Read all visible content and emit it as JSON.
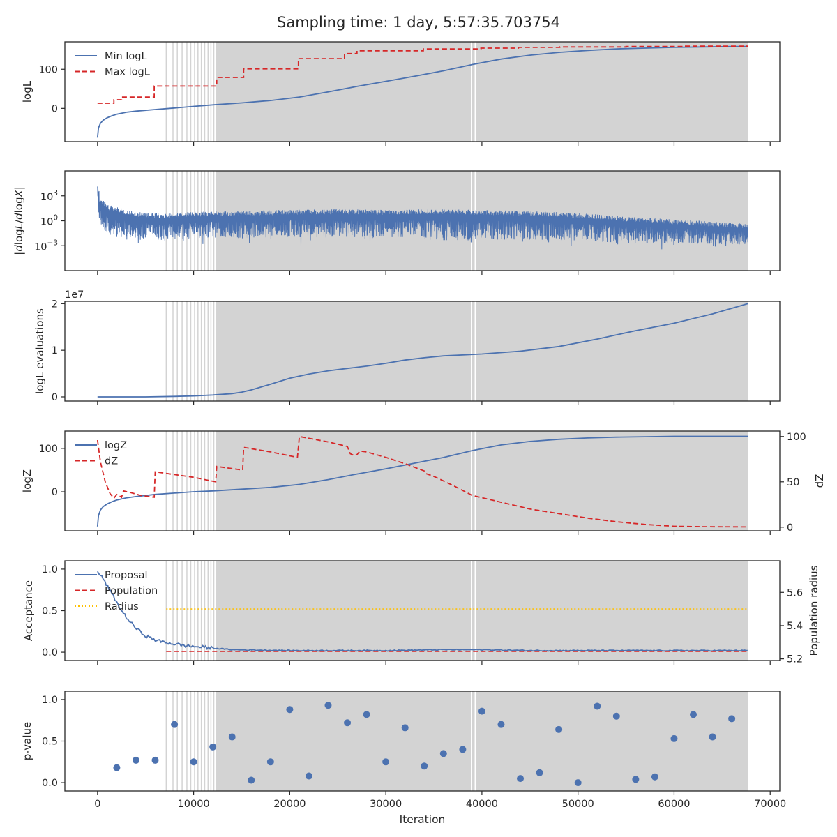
{
  "figure": {
    "title": "Sampling time: 1 day, 5:57:35.703754",
    "xlabel": "Iteration",
    "xlim": [
      -3400,
      71000
    ],
    "xticks": [
      0,
      10000,
      20000,
      30000,
      40000,
      50000,
      60000,
      70000
    ],
    "shading_color": "#d3d3d3",
    "shaded_start": 12350,
    "shaded_end": 67700,
    "gap_lines": [
      7150,
      7850,
      8300,
      8800,
      9300,
      9700,
      10100,
      10450,
      10800,
      11150,
      11500,
      11800,
      12100
    ],
    "white_lines": [
      38900,
      39300
    ]
  },
  "chart_data": [
    {
      "type": "line",
      "name": "logL panel",
      "ylabel": "logL",
      "ylim": [
        -85,
        170
      ],
      "yticks": [
        0,
        100
      ],
      "legend": "top-left",
      "series": [
        {
          "name": "Min logL",
          "color": "#4c72b0",
          "style": "solid",
          "x": [
            0,
            100,
            300,
            600,
            1000,
            1500,
            2000,
            3000,
            4000,
            6000,
            8000,
            10000,
            12000,
            15000,
            18000,
            21000,
            24000,
            27000,
            30000,
            33000,
            36000,
            39000,
            42000,
            45000,
            48000,
            51000,
            54000,
            57000,
            60000,
            63000,
            66000,
            67700
          ],
          "y": [
            -75,
            -50,
            -38,
            -30,
            -24,
            -19,
            -15,
            -10,
            -7,
            -3,
            1,
            5,
            9,
            14,
            20,
            29,
            42,
            56,
            69,
            82,
            96,
            112,
            126,
            136,
            143,
            148,
            152,
            154,
            156,
            157,
            158,
            158
          ]
        },
        {
          "name": "Max logL",
          "color": "#d62728",
          "style": "dashed",
          "x": [
            0,
            1700,
            1700,
            2500,
            2500,
            5900,
            5900,
            12400,
            12400,
            15200,
            15200,
            20900,
            20900,
            25700,
            25700,
            27000,
            27000,
            33900,
            33900,
            39900,
            39900,
            43800,
            43800,
            48100,
            48100,
            55000,
            55000,
            60900,
            60900,
            67700
          ],
          "y": [
            13,
            13,
            22,
            22,
            29,
            29,
            57,
            57,
            79,
            79,
            101,
            101,
            127,
            127,
            140,
            140,
            147,
            147,
            152,
            152,
            154,
            154,
            156,
            156,
            157,
            157,
            158,
            158,
            159,
            159
          ]
        }
      ]
    },
    {
      "type": "line",
      "name": "gradient panel",
      "ylabel": "|dlogL/dlogX|",
      "yscale": "log",
      "ylim": [
        1e-06,
        1000000.0
      ],
      "yticks": [
        "10^3",
        "10^0",
        "10^-3"
      ],
      "series": [
        {
          "name": "|dlogL/dlogX|",
          "color": "#4c72b0",
          "envelope_x": [
            0,
            200,
            1000,
            3000,
            5000,
            7000,
            10000,
            15000,
            20000,
            25000,
            30000,
            35000,
            40000,
            45000,
            50000,
            55000,
            60000,
            65000,
            67700
          ],
          "envelope_upper": [
            20000,
            500,
            80,
            20,
            8,
            8,
            12,
            15,
            20,
            25,
            20,
            25,
            20,
            15,
            8,
            3,
            1.5,
            0.6,
            0.5
          ],
          "envelope_lower": [
            1,
            0.05,
            0.003,
            0.002,
            0.002,
            0.001,
            0.002,
            0.002,
            0.003,
            0.002,
            0.002,
            0.001,
            0.001,
            0.001,
            0.001,
            0.0005,
            0.0005,
            0.0005,
            0.0005
          ]
        }
      ]
    },
    {
      "type": "line",
      "name": "evaluations panel",
      "ylabel": "logL evaluations",
      "scale_label": "1e7",
      "ylim": [
        -0.09,
        2.05
      ],
      "yticks": [
        0,
        1,
        2
      ],
      "series": [
        {
          "name": "logL evaluations",
          "color": "#4c72b0",
          "x": [
            0,
            5000,
            8000,
            10000,
            12000,
            14000,
            15000,
            16000,
            18000,
            20000,
            22000,
            24000,
            26000,
            28000,
            30000,
            32000,
            34000,
            36000,
            40000,
            44000,
            48000,
            52000,
            56000,
            60000,
            64000,
            67700
          ],
          "y": [
            0.0,
            0.0,
            0.01,
            0.02,
            0.04,
            0.07,
            0.1,
            0.15,
            0.27,
            0.4,
            0.49,
            0.56,
            0.61,
            0.66,
            0.72,
            0.79,
            0.84,
            0.88,
            0.92,
            0.98,
            1.08,
            1.24,
            1.42,
            1.58,
            1.78,
            2.0
          ]
        }
      ]
    },
    {
      "type": "line",
      "name": "evidence panel",
      "ylabel": "logZ",
      "ylabel_right": "dZ",
      "ylim": [
        -90,
        140
      ],
      "yticks": [
        0,
        100
      ],
      "ylim_right": [
        -4,
        106
      ],
      "yticks_right": [
        0,
        50,
        100
      ],
      "legend": "top-left",
      "series": [
        {
          "name": "logZ",
          "color": "#4c72b0",
          "style": "solid",
          "axis": "left",
          "x": [
            0,
            100,
            300,
            600,
            1000,
            1500,
            2000,
            3000,
            4000,
            6000,
            8000,
            10000,
            12000,
            15000,
            18000,
            21000,
            24000,
            27000,
            30000,
            33000,
            36000,
            39000,
            42000,
            45000,
            48000,
            51000,
            54000,
            57000,
            60000,
            63000,
            66000,
            67700
          ],
          "y": [
            -80,
            -55,
            -42,
            -34,
            -28,
            -23,
            -19,
            -14,
            -11,
            -6,
            -3,
            0,
            2,
            6,
            10,
            17,
            28,
            41,
            53,
            66,
            79,
            95,
            108,
            116,
            121,
            124,
            126,
            127,
            128,
            128,
            128,
            128
          ]
        },
        {
          "name": "dZ",
          "color": "#d62728",
          "style": "dashed",
          "axis": "right",
          "x": [
            0,
            300,
            800,
            1300,
            1700,
            2000,
            2500,
            2700,
            3500,
            4500,
            5900,
            6000,
            8000,
            10000,
            12300,
            12400,
            15100,
            15200,
            18000,
            20800,
            21000,
            22000,
            24000,
            26000,
            26300,
            26700,
            27000,
            27300,
            28000,
            30000,
            32000,
            34000,
            34200,
            35000,
            37000,
            39000,
            41000,
            43000,
            45000,
            48000,
            51000,
            54000,
            57000,
            60000,
            63000,
            67700
          ],
          "y": [
            96,
            72,
            50,
            37,
            32,
            36,
            33,
            40,
            38,
            35,
            33,
            61,
            58,
            55,
            50,
            67,
            63,
            88,
            83,
            77,
            100,
            98,
            94,
            89,
            81,
            79,
            80,
            84,
            83,
            77,
            70,
            62,
            59,
            56,
            46,
            35,
            30,
            25,
            20,
            15,
            10,
            6,
            3,
            1,
            0.5,
            0.3
          ]
        }
      ]
    },
    {
      "type": "line",
      "name": "acceptance panel",
      "ylabel": "Acceptance",
      "ylabel_right": "Population radius",
      "ylim": [
        -0.1,
        1.1
      ],
      "yticks": [
        0.0,
        0.5,
        1.0
      ],
      "ylim_right": [
        5.19,
        5.79
      ],
      "yticks_right": [
        5.2,
        5.4,
        5.6
      ],
      "legend": "top-left",
      "series": [
        {
          "name": "Proposal",
          "color": "#4c72b0",
          "style": "solid",
          "axis": "left",
          "x": [
            0,
            200,
            600,
            1000,
            1500,
            2000,
            2500,
            3000,
            3500,
            4000,
            4500,
            5000,
            5500,
            6000,
            6500,
            7000,
            7500,
            8000,
            9000,
            10000,
            11000,
            12000,
            13000,
            14000,
            20000,
            30000,
            36000,
            40000,
            45000,
            50000,
            60000,
            67700
          ],
          "y": [
            0.97,
            0.94,
            0.88,
            0.8,
            0.7,
            0.6,
            0.5,
            0.42,
            0.35,
            0.29,
            0.24,
            0.2,
            0.17,
            0.15,
            0.13,
            0.12,
            0.11,
            0.1,
            0.08,
            0.07,
            0.06,
            0.05,
            0.04,
            0.03,
            0.02,
            0.02,
            0.03,
            0.03,
            0.02,
            0.02,
            0.02,
            0.02
          ]
        },
        {
          "name": "Population",
          "color": "#d62728",
          "style": "dashed",
          "axis": "left",
          "x": [
            7150,
            67700
          ],
          "y": [
            0.01,
            0.01
          ]
        },
        {
          "name": "Radius",
          "color": "#ffc000",
          "style": "dotted",
          "axis": "right",
          "x": [
            7150,
            67700
          ],
          "y": [
            5.5,
            5.5
          ]
        }
      ]
    },
    {
      "type": "scatter",
      "name": "p-value panel",
      "ylabel": "p-value",
      "ylim": [
        -0.1,
        1.1
      ],
      "yticks": [
        0.0,
        0.5,
        1.0
      ],
      "series": [
        {
          "name": "p-value",
          "color": "#4c72b0",
          "x": [
            2000,
            4000,
            6000,
            8000,
            10000,
            12000,
            14000,
            16000,
            18000,
            20000,
            22000,
            24000,
            26000,
            28000,
            30000,
            32000,
            34000,
            36000,
            38000,
            40000,
            42000,
            44000,
            46000,
            48000,
            50000,
            52000,
            54000,
            56000,
            58000,
            60000,
            62000,
            64000,
            66000
          ],
          "y": [
            0.18,
            0.27,
            0.27,
            0.7,
            0.25,
            0.43,
            0.55,
            0.03,
            0.25,
            0.88,
            0.08,
            0.93,
            0.72,
            0.82,
            0.25,
            0.66,
            0.2,
            0.35,
            0.4,
            0.86,
            0.7,
            0.05,
            0.12,
            0.64,
            0.0,
            0.92,
            0.8,
            0.04,
            0.07,
            0.53,
            0.82,
            0.55,
            0.77
          ]
        }
      ]
    }
  ]
}
